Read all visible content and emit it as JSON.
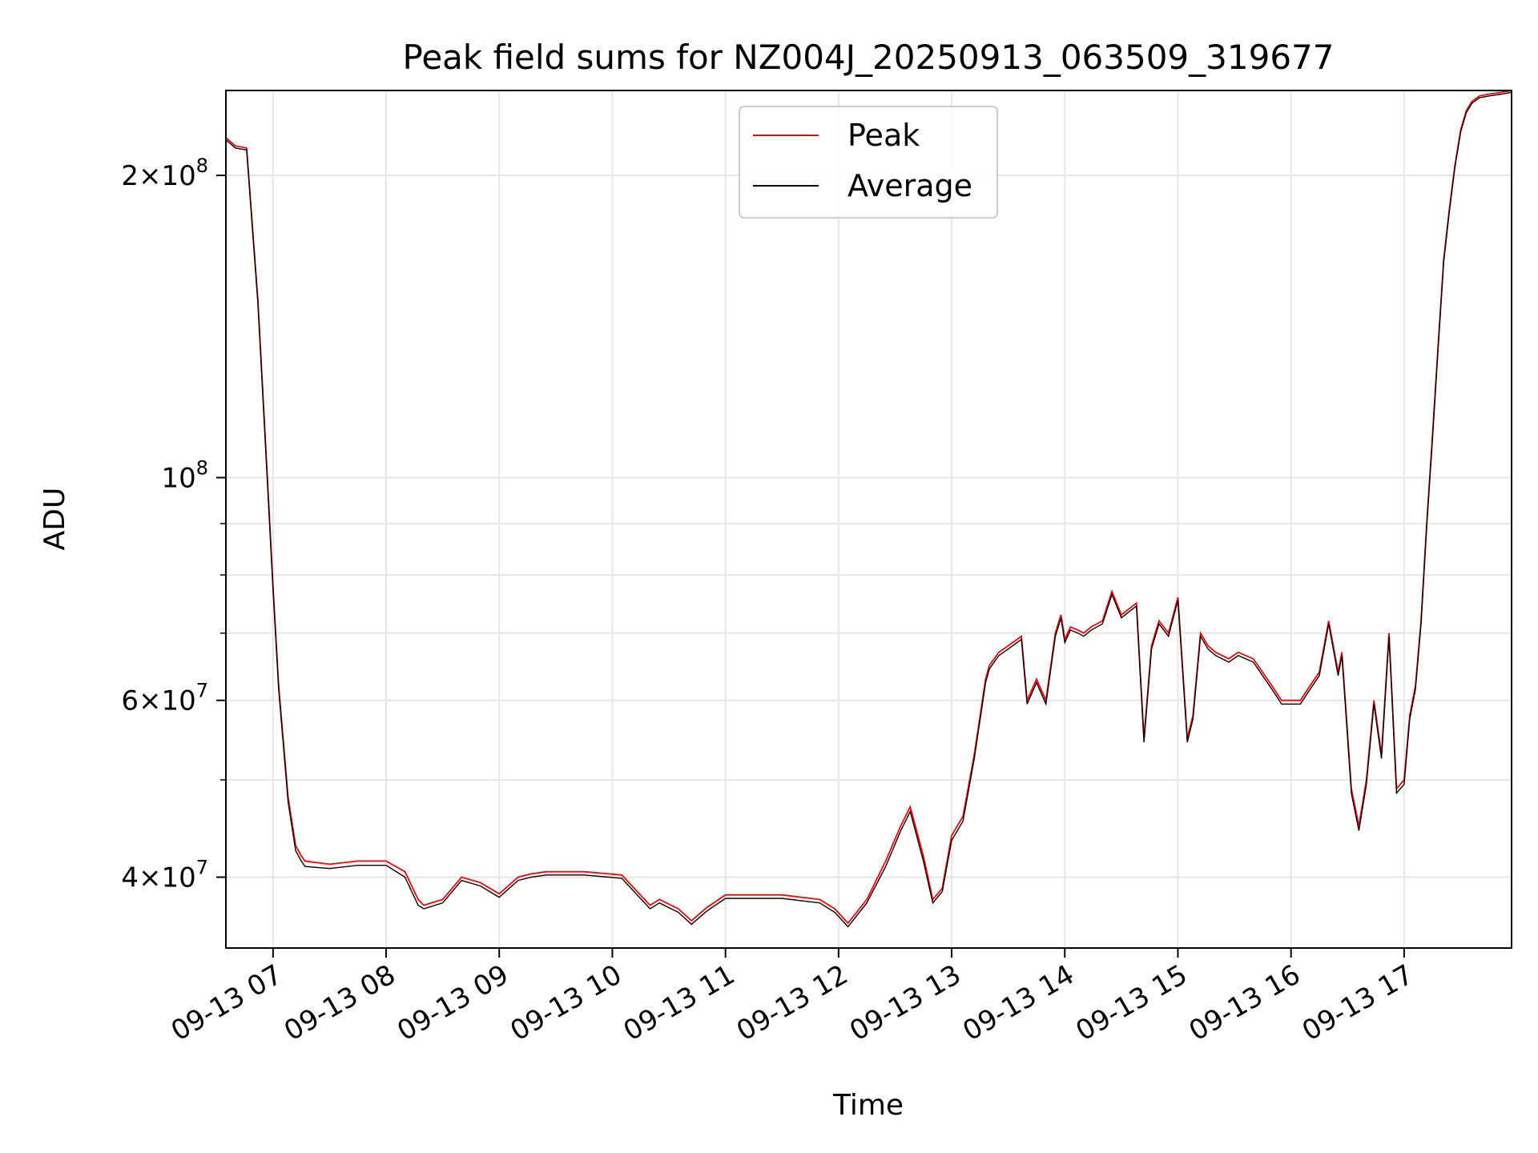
{
  "chart_data": {
    "type": "line",
    "title": "Peak field sums for NZ004J_20250913_063509_319677",
    "xlabel": "Time",
    "ylabel": "ADU",
    "yscale": "log",
    "ylim": [
      34000000,
      243000000
    ],
    "xlim": [
      "2025-09-13 06:35",
      "2025-09-13 17:57"
    ],
    "grid": true,
    "legend_position": "top-center",
    "x_ticks": [
      {
        "t": "2025-09-13 07:00",
        "label": "09-13 07"
      },
      {
        "t": "2025-09-13 08:00",
        "label": "09-13 08"
      },
      {
        "t": "2025-09-13 09:00",
        "label": "09-13 09"
      },
      {
        "t": "2025-09-13 10:00",
        "label": "09-13 10"
      },
      {
        "t": "2025-09-13 11:00",
        "label": "09-13 11"
      },
      {
        "t": "2025-09-13 12:00",
        "label": "09-13 12"
      },
      {
        "t": "2025-09-13 13:00",
        "label": "09-13 13"
      },
      {
        "t": "2025-09-13 14:00",
        "label": "09-13 14"
      },
      {
        "t": "2025-09-13 15:00",
        "label": "09-13 15"
      },
      {
        "t": "2025-09-13 16:00",
        "label": "09-13 16"
      },
      {
        "t": "2025-09-13 17:00",
        "label": "09-13 17"
      }
    ],
    "y_ticks_major": [
      {
        "v": 40000000,
        "mant": "4×10",
        "exp": "7"
      },
      {
        "v": 60000000,
        "mant": "6×10",
        "exp": "7"
      },
      {
        "v": 100000000,
        "mant": "10",
        "exp": "8"
      },
      {
        "v": 200000000,
        "mant": "2×10",
        "exp": "8"
      }
    ],
    "y_ticks_minor": [
      50000000,
      70000000,
      80000000,
      90000000
    ],
    "series": [
      {
        "name": "Peak",
        "color": "#ff0000",
        "x": [
          "2025-09-13 06:35",
          "2025-09-13 06:40",
          "2025-09-13 06:46",
          "2025-09-13 06:52",
          "2025-09-13 06:57",
          "2025-09-13 07:00",
          "2025-09-13 07:03",
          "2025-09-13 07:08",
          "2025-09-13 07:12",
          "2025-09-13 07:15",
          "2025-09-13 07:17",
          "2025-09-13 07:30",
          "2025-09-13 07:45",
          "2025-09-13 08:00",
          "2025-09-13 08:10",
          "2025-09-13 08:17",
          "2025-09-13 08:20",
          "2025-09-13 08:30",
          "2025-09-13 08:40",
          "2025-09-13 08:50",
          "2025-09-13 09:00",
          "2025-09-13 09:10",
          "2025-09-13 09:17",
          "2025-09-13 09:25",
          "2025-09-13 09:45",
          "2025-09-13 10:05",
          "2025-09-13 10:20",
          "2025-09-13 10:25",
          "2025-09-13 10:35",
          "2025-09-13 10:42",
          "2025-09-13 10:50",
          "2025-09-13 11:00",
          "2025-09-13 11:30",
          "2025-09-13 11:50",
          "2025-09-13 11:58",
          "2025-09-13 12:05",
          "2025-09-13 12:15",
          "2025-09-13 12:25",
          "2025-09-13 12:33",
          "2025-09-13 12:38",
          "2025-09-13 12:45",
          "2025-09-13 12:50",
          "2025-09-13 12:55",
          "2025-09-13 13:00",
          "2025-09-13 13:06",
          "2025-09-13 13:12",
          "2025-09-13 13:18",
          "2025-09-13 13:20",
          "2025-09-13 13:25",
          "2025-09-13 13:30",
          "2025-09-13 13:37",
          "2025-09-13 13:40",
          "2025-09-13 13:45",
          "2025-09-13 13:50",
          "2025-09-13 13:55",
          "2025-09-13 13:58",
          "2025-09-13 14:00",
          "2025-09-13 14:03",
          "2025-09-13 14:07",
          "2025-09-13 14:10",
          "2025-09-13 14:14",
          "2025-09-13 14:20",
          "2025-09-13 14:25",
          "2025-09-13 14:30",
          "2025-09-13 14:38",
          "2025-09-13 14:42",
          "2025-09-13 14:46",
          "2025-09-13 14:50",
          "2025-09-13 14:55",
          "2025-09-13 15:00",
          "2025-09-13 15:05",
          "2025-09-13 15:08",
          "2025-09-13 15:12",
          "2025-09-13 15:16",
          "2025-09-13 15:20",
          "2025-09-13 15:27",
          "2025-09-13 15:32",
          "2025-09-13 15:40",
          "2025-09-13 15:50",
          "2025-09-13 15:55",
          "2025-09-13 16:00",
          "2025-09-13 16:05",
          "2025-09-13 16:10",
          "2025-09-13 16:15",
          "2025-09-13 16:20",
          "2025-09-13 16:25",
          "2025-09-13 16:27",
          "2025-09-13 16:32",
          "2025-09-13 16:36",
          "2025-09-13 16:40",
          "2025-09-13 16:44",
          "2025-09-13 16:48",
          "2025-09-13 16:52",
          "2025-09-13 16:56",
          "2025-09-13 17:00",
          "2025-09-13 17:03",
          "2025-09-13 17:06",
          "2025-09-13 17:09",
          "2025-09-13 17:12",
          "2025-09-13 17:15",
          "2025-09-13 17:18",
          "2025-09-13 17:21",
          "2025-09-13 17:24",
          "2025-09-13 17:27",
          "2025-09-13 17:30",
          "2025-09-13 17:33",
          "2025-09-13 17:36",
          "2025-09-13 17:40",
          "2025-09-13 17:45",
          "2025-09-13 17:52",
          "2025-09-13 17:57"
        ],
        "y": [
          218000000,
          214000000,
          213000000,
          150000000,
          100000000,
          78000000,
          62000000,
          48000000,
          43000000,
          42000000,
          41500000,
          41200000,
          41500000,
          41500000,
          40500000,
          38000000,
          37500000,
          38000000,
          40000000,
          39500000,
          38500000,
          40000000,
          40300000,
          40500000,
          40500000,
          40200000,
          37500000,
          38000000,
          37200000,
          36200000,
          37300000,
          38400000,
          38400000,
          38000000,
          37200000,
          36000000,
          38000000,
          41500000,
          45000000,
          47000000,
          42000000,
          38000000,
          39000000,
          44000000,
          46000000,
          53000000,
          63000000,
          65000000,
          67000000,
          68000000,
          69500000,
          60000000,
          63000000,
          60000000,
          70000000,
          73000000,
          69000000,
          71000000,
          70500000,
          70000000,
          71000000,
          72000000,
          77000000,
          73000000,
          75000000,
          55000000,
          68000000,
          72000000,
          70000000,
          76000000,
          55000000,
          58000000,
          70000000,
          68000000,
          67000000,
          66000000,
          67000000,
          66000000,
          62000000,
          60000000,
          60000000,
          60000000,
          62000000,
          64000000,
          72000000,
          64000000,
          67000000,
          49000000,
          45000000,
          50000000,
          60000000,
          53000000,
          70000000,
          49000000,
          50000000,
          58000000,
          62000000,
          72000000,
          90000000,
          110000000,
          135000000,
          165000000,
          185000000,
          205000000,
          222000000,
          232000000,
          237000000,
          240000000,
          241000000,
          242000000,
          243000000
        ]
      },
      {
        "name": "Average",
        "color": "#000000",
        "x": [
          "2025-09-13 06:35",
          "2025-09-13 06:40",
          "2025-09-13 06:46",
          "2025-09-13 06:52",
          "2025-09-13 06:57",
          "2025-09-13 07:00",
          "2025-09-13 07:03",
          "2025-09-13 07:08",
          "2025-09-13 07:12",
          "2025-09-13 07:15",
          "2025-09-13 07:17",
          "2025-09-13 07:30",
          "2025-09-13 07:45",
          "2025-09-13 08:00",
          "2025-09-13 08:10",
          "2025-09-13 08:17",
          "2025-09-13 08:20",
          "2025-09-13 08:30",
          "2025-09-13 08:40",
          "2025-09-13 08:50",
          "2025-09-13 09:00",
          "2025-09-13 09:10",
          "2025-09-13 09:17",
          "2025-09-13 09:25",
          "2025-09-13 09:45",
          "2025-09-13 10:05",
          "2025-09-13 10:20",
          "2025-09-13 10:25",
          "2025-09-13 10:35",
          "2025-09-13 10:42",
          "2025-09-13 10:50",
          "2025-09-13 11:00",
          "2025-09-13 11:30",
          "2025-09-13 11:50",
          "2025-09-13 11:58",
          "2025-09-13 12:05",
          "2025-09-13 12:15",
          "2025-09-13 12:25",
          "2025-09-13 12:33",
          "2025-09-13 12:38",
          "2025-09-13 12:45",
          "2025-09-13 12:50",
          "2025-09-13 12:55",
          "2025-09-13 13:00",
          "2025-09-13 13:06",
          "2025-09-13 13:12",
          "2025-09-13 13:18",
          "2025-09-13 13:20",
          "2025-09-13 13:25",
          "2025-09-13 13:30",
          "2025-09-13 13:37",
          "2025-09-13 13:40",
          "2025-09-13 13:45",
          "2025-09-13 13:50",
          "2025-09-13 13:55",
          "2025-09-13 13:58",
          "2025-09-13 14:00",
          "2025-09-13 14:03",
          "2025-09-13 14:07",
          "2025-09-13 14:10",
          "2025-09-13 14:14",
          "2025-09-13 14:20",
          "2025-09-13 14:25",
          "2025-09-13 14:30",
          "2025-09-13 14:38",
          "2025-09-13 14:42",
          "2025-09-13 14:46",
          "2025-09-13 14:50",
          "2025-09-13 14:55",
          "2025-09-13 15:00",
          "2025-09-13 15:05",
          "2025-09-13 15:08",
          "2025-09-13 15:12",
          "2025-09-13 15:16",
          "2025-09-13 15:20",
          "2025-09-13 15:27",
          "2025-09-13 15:32",
          "2025-09-13 15:40",
          "2025-09-13 15:50",
          "2025-09-13 15:55",
          "2025-09-13 16:00",
          "2025-09-13 16:05",
          "2025-09-13 16:10",
          "2025-09-13 16:15",
          "2025-09-13 16:20",
          "2025-09-13 16:25",
          "2025-09-13 16:27",
          "2025-09-13 16:32",
          "2025-09-13 16:36",
          "2025-09-13 16:40",
          "2025-09-13 16:44",
          "2025-09-13 16:48",
          "2025-09-13 16:52",
          "2025-09-13 16:56",
          "2025-09-13 17:00",
          "2025-09-13 17:03",
          "2025-09-13 17:06",
          "2025-09-13 17:09",
          "2025-09-13 17:12",
          "2025-09-13 17:15",
          "2025-09-13 17:18",
          "2025-09-13 17:21",
          "2025-09-13 17:24",
          "2025-09-13 17:27",
          "2025-09-13 17:30",
          "2025-09-13 17:33",
          "2025-09-13 17:36",
          "2025-09-13 17:40",
          "2025-09-13 17:45",
          "2025-09-13 17:52",
          "2025-09-13 17:57"
        ],
        "y": [
          217000000,
          213000000,
          212000000,
          149000000,
          99000000,
          77500000,
          61500000,
          47500000,
          42500000,
          41500000,
          41000000,
          40800000,
          41100000,
          41100000,
          40000000,
          37500000,
          37200000,
          37700000,
          39700000,
          39200000,
          38200000,
          39700000,
          40000000,
          40200000,
          40200000,
          39900000,
          37200000,
          37700000,
          36900000,
          35900000,
          37000000,
          38100000,
          38100000,
          37700000,
          36900000,
          35700000,
          37700000,
          41000000,
          44500000,
          46500000,
          41500000,
          37700000,
          38700000,
          43500000,
          45500000,
          52500000,
          62500000,
          64500000,
          66500000,
          67500000,
          69000000,
          59500000,
          62500000,
          59500000,
          69500000,
          72500000,
          68500000,
          70500000,
          70000000,
          69500000,
          70500000,
          71500000,
          76500000,
          72500000,
          74500000,
          54500000,
          67500000,
          71500000,
          69500000,
          75500000,
          54500000,
          57500000,
          69500000,
          67500000,
          66500000,
          65500000,
          66500000,
          65500000,
          61500000,
          59500000,
          59500000,
          59500000,
          61500000,
          63500000,
          71500000,
          63500000,
          66500000,
          48500000,
          44500000,
          49500000,
          59500000,
          52500000,
          69500000,
          48500000,
          49500000,
          57500000,
          61500000,
          71500000,
          89500000,
          109000000,
          134000000,
          164000000,
          184000000,
          204000000,
          221000000,
          231000000,
          236000000,
          239000000,
          240000000,
          241000000,
          242000000
        ]
      }
    ]
  }
}
